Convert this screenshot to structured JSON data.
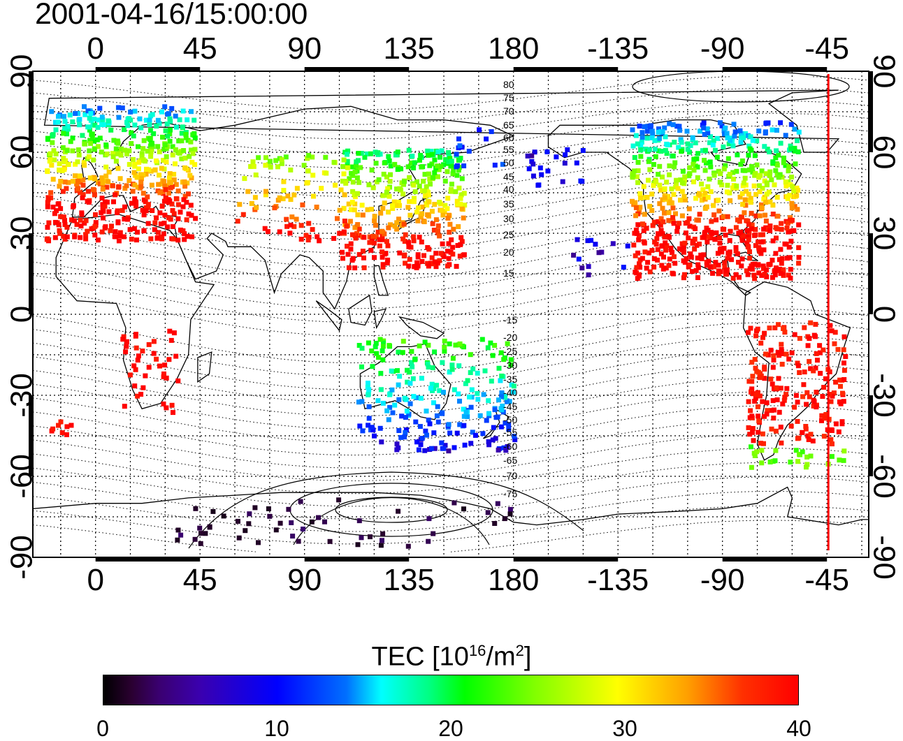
{
  "title": "2001-04-16/15:00:00",
  "map": {
    "lon_ticks": [
      0,
      45,
      90,
      135,
      180,
      -135,
      -90,
      -45
    ],
    "lat_ticks": [
      90,
      60,
      30,
      0,
      -30,
      -60,
      -90
    ],
    "contour_labels": [
      "80",
      "75",
      "70",
      "65",
      "60",
      "55",
      "50",
      "45",
      "40",
      "35",
      "30",
      "25",
      "20",
      "15",
      "-15",
      "-20",
      "-25",
      "-30",
      "-35",
      "-40",
      "-45",
      "-50",
      "-55",
      "-60",
      "-65",
      "-70",
      "-75"
    ],
    "meridian_line_color": "#ff0000",
    "meridian_line_lon": -45
  },
  "colorbar": {
    "title": "TEC  [10",
    "exponent": "16",
    "unit_mid": "/m",
    "unit_exp": "2",
    "unit_end": "]",
    "min": 0,
    "max": 40,
    "ticks": [
      0,
      10,
      20,
      30,
      40
    ]
  },
  "tec_regions": [
    {
      "name": "europe",
      "lon": [
        -20,
        40
      ],
      "lat": [
        30,
        75
      ],
      "value_range": [
        18,
        40
      ]
    },
    {
      "name": "east-asia",
      "lon": [
        110,
        155
      ],
      "lat": [
        20,
        60
      ],
      "value_range": [
        18,
        38
      ]
    },
    {
      "name": "north-america",
      "lon": [
        -130,
        -60
      ],
      "lat": [
        15,
        70
      ],
      "value_range": [
        12,
        40
      ]
    },
    {
      "name": "south-america",
      "lon": [
        -80,
        -35
      ],
      "lat": [
        -55,
        0
      ],
      "value_range": [
        25,
        40
      ]
    },
    {
      "name": "australia",
      "lon": [
        110,
        180
      ],
      "lat": [
        -48,
        -10
      ],
      "value_range": [
        8,
        22
      ]
    },
    {
      "name": "antarctica",
      "lon": [
        30,
        180
      ],
      "lat": [
        -85,
        -65
      ],
      "value_range": [
        2,
        8
      ]
    }
  ]
}
